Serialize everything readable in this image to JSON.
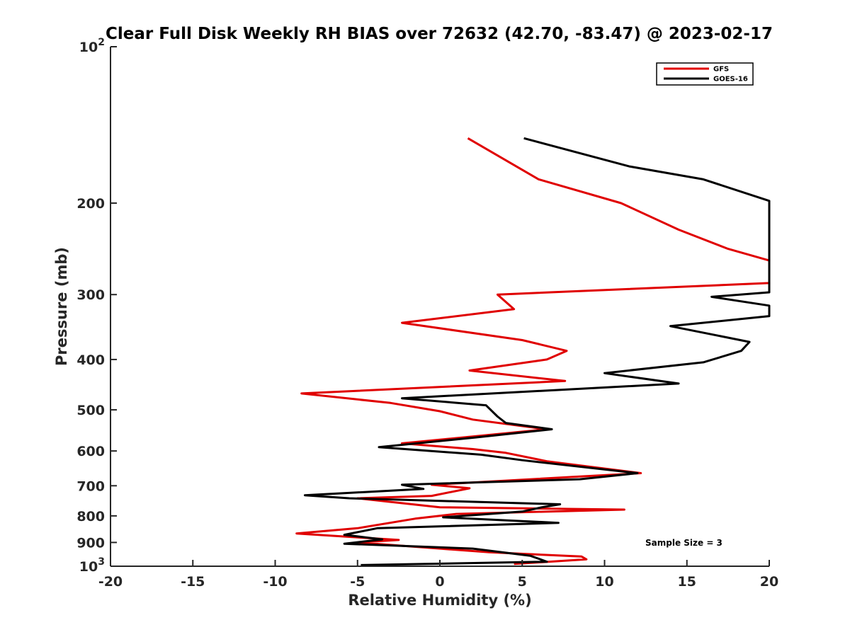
{
  "chart_data": {
    "type": "line",
    "title": "Clear Full Disk Weekly RH BIAS over 72632 (42.70, -83.47) @ 2023-02-17",
    "xlabel": "Relative Humidity (%)",
    "ylabel": "Pressure (mb)",
    "xlim": [
      -20,
      20
    ],
    "ylim": [
      100,
      1000
    ],
    "y_scale": "log",
    "y_reversed": true,
    "grid": false,
    "legend_position": "top-right",
    "x_ticks": [
      "-20",
      "-15",
      "-10",
      "-5",
      "0",
      "5",
      "10",
      "15",
      "20"
    ],
    "y_ticks": [
      {
        "value": 100,
        "base": "10",
        "exp": "2"
      },
      {
        "value": 200,
        "label": "200"
      },
      {
        "value": 300,
        "label": "300"
      },
      {
        "value": 400,
        "label": "400"
      },
      {
        "value": 500,
        "label": "500"
      },
      {
        "value": 600,
        "label": "600"
      },
      {
        "value": 700,
        "label": "700"
      },
      {
        "value": 800,
        "label": "800"
      },
      {
        "value": 900,
        "label": "900"
      },
      {
        "value": 1000,
        "base": "10",
        "exp": "3"
      }
    ],
    "annotation": "Sample Size = 3",
    "series": [
      {
        "name": "GFS",
        "color": "#e00000",
        "x": [
          1.7,
          6.0,
          11.0,
          14.5,
          17.5,
          20.0,
          20.0,
          3.5,
          4.5,
          -2.3,
          5.0,
          7.7,
          6.5,
          1.8,
          7.6,
          -8.4,
          -3.0,
          0.0,
          2.0,
          6.5,
          -2.3,
          2.0,
          4.0,
          6.5,
          12.2,
          8.5,
          -0.5,
          1.8,
          -0.5,
          -5.0,
          -2.5,
          0.0,
          11.2,
          1.0,
          -1.5,
          -5.0,
          -8.7,
          -2.5,
          -5.0,
          3.0,
          8.6,
          8.9,
          4.5
        ],
        "y": [
          150,
          180,
          200,
          225,
          245,
          258,
          285,
          300,
          320,
          340,
          367,
          385,
          400,
          420,
          440,
          465,
          485,
          503,
          522,
          545,
          580,
          595,
          605,
          628,
          662,
          672,
          697,
          708,
          732,
          740,
          755,
          770,
          778,
          793,
          810,
          845,
          865,
          890,
          900,
          940,
          958,
          970,
          990
        ]
      },
      {
        "name": "GOES-16",
        "color": "#000000",
        "x": [
          5.1,
          11.5,
          16.0,
          20.0,
          20.0,
          16.5,
          20.0,
          20.0,
          14.0,
          18.8,
          18.3,
          16.0,
          10.0,
          14.5,
          -2.3,
          2.8,
          3.5,
          4.0,
          6.8,
          2.2,
          -3.7,
          2.5,
          5.0,
          12.0,
          8.5,
          -2.3,
          -1.0,
          -8.2,
          -5.5,
          7.3,
          6.2,
          5.0,
          0.2,
          7.2,
          -3.8,
          -5.8,
          -3.5,
          -5.8,
          2.0,
          5.5,
          6.5,
          -4.8
        ],
        "y": [
          150,
          170,
          180,
          198,
          297,
          303,
          315,
          330,
          345,
          370,
          385,
          405,
          425,
          445,
          475,
          490,
          515,
          530,
          545,
          565,
          590,
          610,
          625,
          662,
          680,
          697,
          710,
          730,
          740,
          760,
          770,
          785,
          805,
          825,
          845,
          870,
          888,
          905,
          925,
          955,
          980,
          995
        ]
      }
    ]
  }
}
